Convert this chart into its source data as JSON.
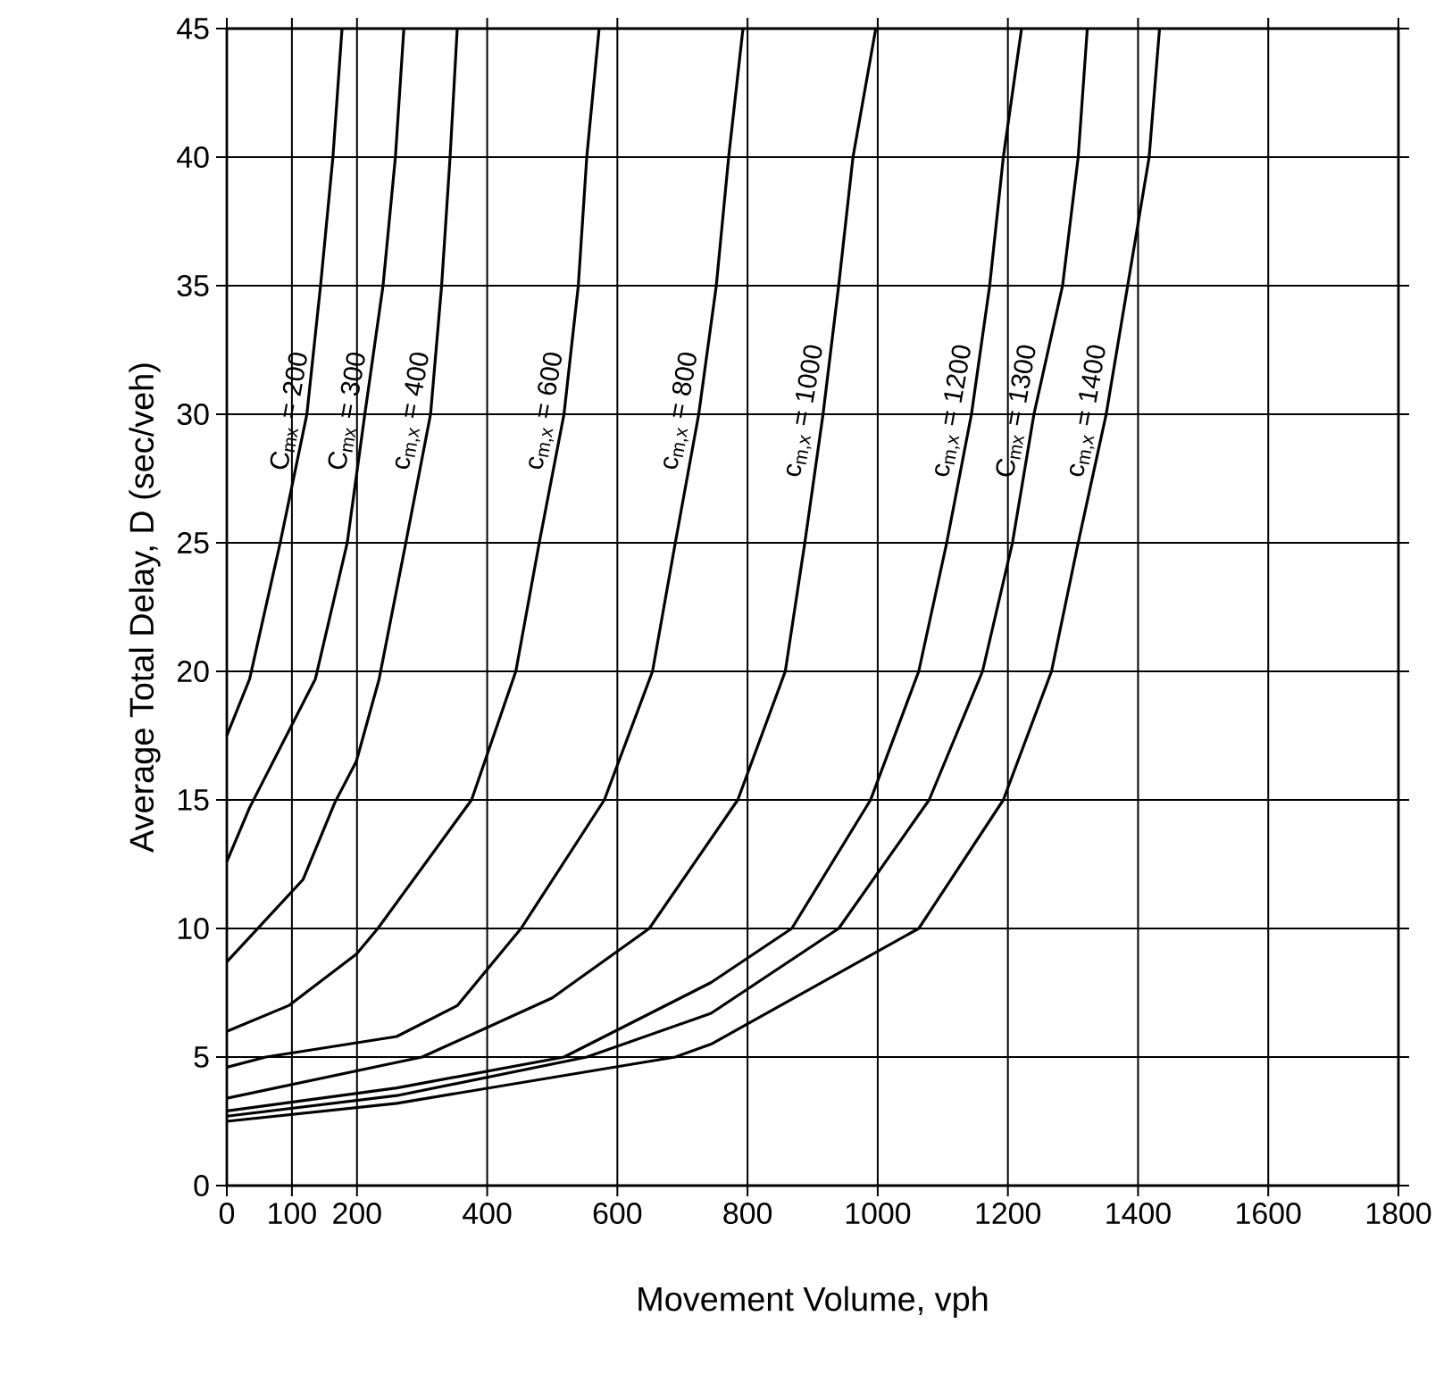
{
  "chart_data": {
    "type": "line",
    "xlabel": "Movement Volume, vph",
    "ylabel": "Average Total Delay, D (sec/veh)",
    "xlim": [
      0,
      1800
    ],
    "ylim": [
      0,
      45
    ],
    "xticks": [
      0,
      {
        "value": 100,
        "label": "100"
      },
      200,
      400,
      600,
      800,
      1000,
      1200,
      1400,
      1600,
      1800
    ],
    "yticks": [
      0,
      5,
      10,
      15,
      20,
      25,
      30,
      35,
      40,
      45
    ],
    "grid": true,
    "marker": "none",
    "line_style": "solid",
    "series": [
      {
        "name": "C$_{mx}$ = 200",
        "color": "#000000",
        "x": [
          0,
          35,
          82,
          123,
          144,
          163,
          177
        ],
        "values": [
          17.5,
          19.7,
          25,
          30,
          35,
          40,
          45
        ]
      },
      {
        "name": "C$_{mx}$ = 300",
        "color": "#000000",
        "x": [
          0,
          35,
          136,
          185,
          212,
          240,
          259,
          272
        ],
        "values": [
          12.6,
          14.7,
          19.7,
          25,
          30,
          35,
          40,
          45
        ]
      },
      {
        "name": "c$_{m,x}$ = 400",
        "color": "#000000",
        "x": [
          0,
          117,
          166,
          199,
          234,
          275,
          313,
          330,
          343,
          354
        ],
        "values": [
          8.7,
          11.9,
          14.9,
          16.5,
          19.7,
          25,
          30,
          35,
          40,
          45
        ]
      },
      {
        "name": "c$_{m,x}$ = 600",
        "color": "#000000",
        "x": [
          0,
          95,
          199,
          232,
          376,
          444,
          480,
          518,
          540,
          553,
          572
        ],
        "values": [
          6.0,
          7.0,
          9.0,
          10,
          15,
          20,
          25,
          30,
          35,
          40,
          45
        ]
      },
      {
        "name": "c$_{m,x}$ = 800",
        "color": "#000000",
        "x": [
          0,
          60,
          261,
          354,
          452,
          580,
          654,
          689,
          725,
          752,
          771,
          793
        ],
        "values": [
          4.6,
          5,
          5.8,
          7.0,
          10,
          15,
          20,
          25,
          30,
          35,
          40,
          45
        ]
      },
      {
        "name": "c$_{m,x}$ = 1000",
        "color": "#000000",
        "x": [
          0,
          300,
          500,
          649,
          785,
          858,
          888,
          916,
          940,
          962,
          997
        ],
        "values": [
          3.4,
          5,
          7.3,
          10,
          15,
          20,
          25,
          30,
          35,
          40,
          45
        ]
      },
      {
        "name": "c$_{m,x}$ = 1200",
        "color": "#000000",
        "x": [
          0,
          261,
          518,
          744,
          868,
          989,
          1063,
          1106,
          1144,
          1172,
          1193,
          1221
        ],
        "values": [
          2.9,
          3.8,
          5,
          7.9,
          10,
          15,
          20,
          25,
          30,
          35,
          40,
          45
        ]
      },
      {
        "name": "C$_{mx}$ = 1300",
        "color": "#000000",
        "x": [
          0,
          261,
          553,
          744,
          940,
          1079,
          1161,
          1207,
          1240,
          1284,
          1308,
          1322
        ],
        "values": [
          2.7,
          3.5,
          5,
          6.7,
          10,
          15,
          20,
          25,
          30,
          35,
          40,
          45
        ]
      },
      {
        "name": "c$_{m,x}$ = 1400",
        "color": "#000000",
        "x": [
          0,
          261,
          689,
          744,
          1063,
          1193,
          1267,
          1308,
          1351,
          1384,
          1417,
          1433
        ],
        "values": [
          2.5,
          3.2,
          5,
          5.5,
          10,
          15,
          20,
          25,
          30,
          35,
          40,
          45
        ]
      }
    ]
  }
}
